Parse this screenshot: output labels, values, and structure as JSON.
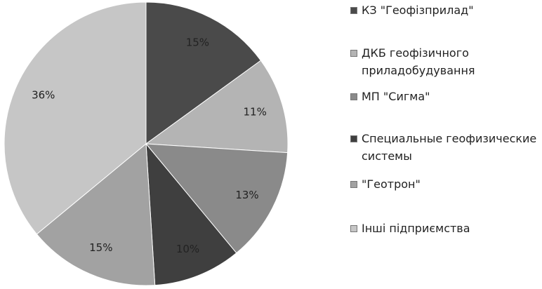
{
  "chart_data": {
    "type": "pie",
    "categories": [
      "КЗ \"Геофізприлад\"",
      "ДКБ геофізичного приладобудування",
      "МП \"Сигма\"",
      "Специальные геофизические системы",
      "\"Геотрон\"",
      "Інші підприємства"
    ],
    "values": [
      15,
      11,
      13,
      10,
      15,
      36
    ],
    "value_labels": [
      "15%",
      "11%",
      "13%",
      "10%",
      "15%",
      "36%"
    ],
    "colors": [
      "#4a4a4a",
      "#b4b4b4",
      "#8a8a8a",
      "#3f3f3f",
      "#a2a2a2",
      "#c6c6c6"
    ]
  }
}
